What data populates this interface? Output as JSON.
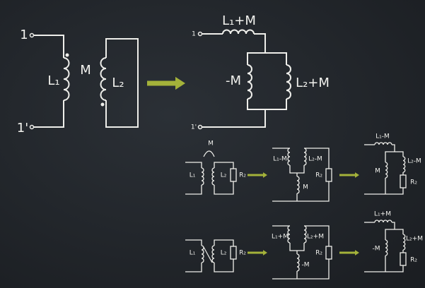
{
  "main_left": {
    "terminal_top": "1",
    "terminal_bottom": "1'",
    "inductor_1": "L₁",
    "mutual": "M",
    "inductor_2": "L₂"
  },
  "main_right": {
    "series_inductor": "L₁+M",
    "terminal_top": "1",
    "shunt_inductor": "-M",
    "branch_inductor": "L₂+M",
    "terminal_bottom": "1'"
  },
  "row_1": {
    "coupled": {
      "inductor_1": "L₁",
      "mutual": "M",
      "inductor_2": "L₂",
      "resistor": "R₂"
    },
    "tee": {
      "inductor_1": "L₁-M",
      "inductor_2": "L₂-M",
      "shunt": "M",
      "resistor": "R₂"
    },
    "reduced": {
      "series": "L₁-M",
      "branch": "L₂-M",
      "shunt": "M",
      "resistor": "R₂"
    }
  },
  "row_2": {
    "coupled": {
      "inductor_1": "L₁",
      "inductor_2": "L₂",
      "resistor": "R₂"
    },
    "tee": {
      "inductor_1": "L₁+M",
      "inductor_2": "L₂+M",
      "shunt": "-M",
      "resistor": "R₂"
    },
    "reduced": {
      "series": "L₁+M",
      "shunt": "-M",
      "branch": "L₂+M",
      "resistor": "R₂"
    }
  }
}
